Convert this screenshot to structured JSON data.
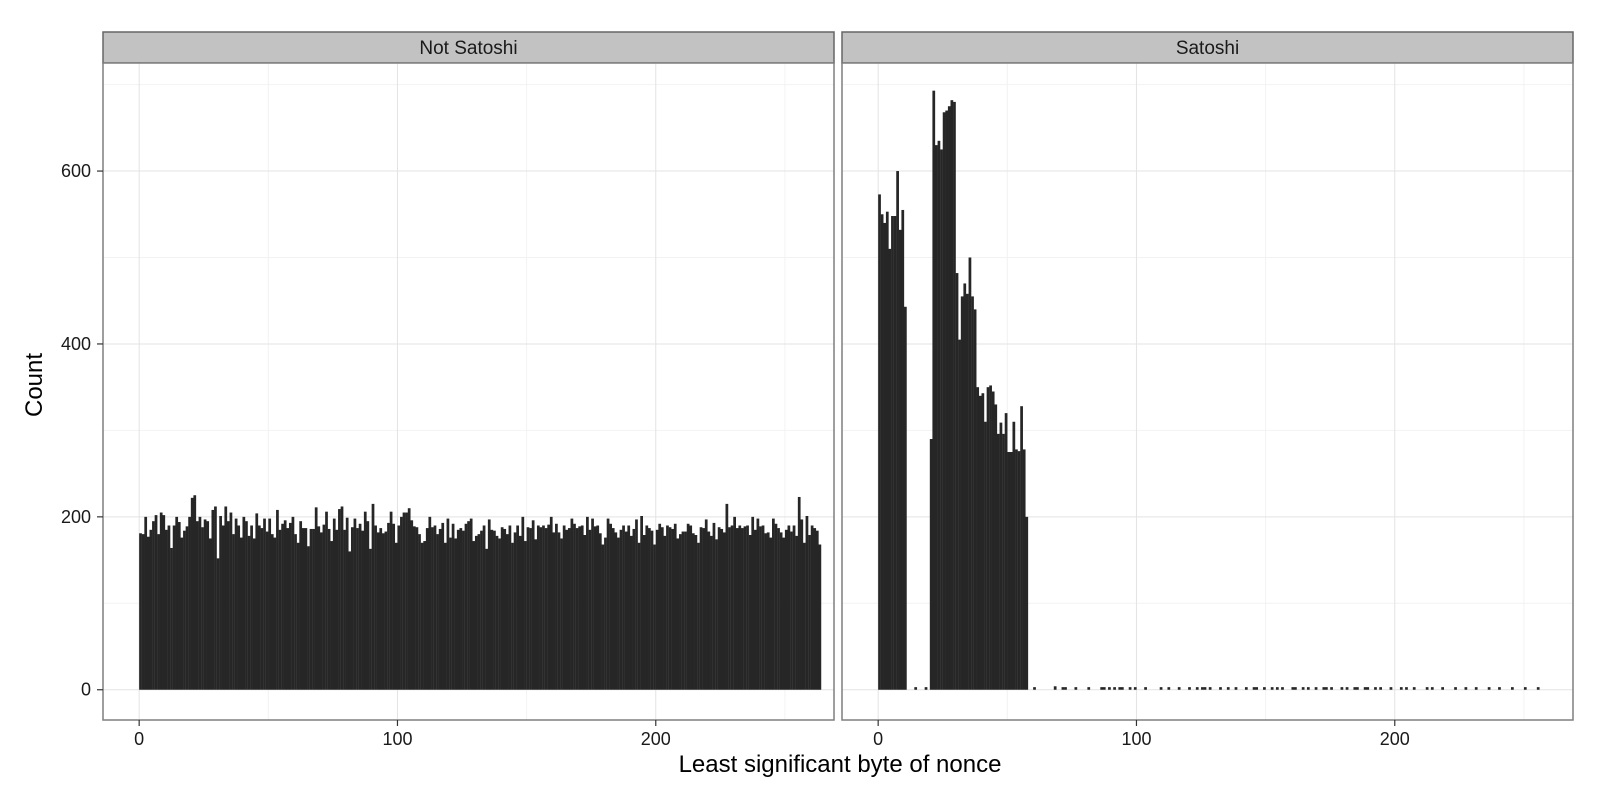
{
  "chart_data": {
    "type": "bar",
    "xlabel": "Least significant byte of nonce",
    "ylabel": "Count",
    "xlim": [
      -14,
      269
    ],
    "ylim": [
      -35,
      725
    ],
    "x_ticks": [
      0,
      100,
      200
    ],
    "y_ticks": [
      0,
      200,
      400,
      600
    ],
    "x_minor_ticks": [
      50,
      150,
      250
    ],
    "y_minor_ticks": [
      100,
      300,
      500,
      700
    ],
    "grid": true,
    "bar_color": "#262626",
    "panels": [
      {
        "label": "Not Satoshi",
        "x_start": 0,
        "bin_width": 1,
        "values": [
          181,
          180,
          200,
          177,
          185,
          195,
          202,
          180,
          205,
          202,
          185,
          190,
          164,
          190,
          200,
          194,
          176,
          184,
          189,
          200,
          222,
          225,
          195,
          200,
          188,
          197,
          195,
          175,
          208,
          212,
          152,
          201,
          190,
          212,
          195,
          205,
          180,
          198,
          190,
          176,
          200,
          195,
          178,
          190,
          175,
          204,
          190,
          187,
          198,
          183,
          198,
          180,
          176,
          208,
          185,
          192,
          196,
          187,
          193,
          200,
          180,
          170,
          195,
          187,
          187,
          166,
          186,
          186,
          211,
          189,
          182,
          191,
          206,
          186,
          172,
          198,
          185,
          209,
          212,
          185,
          199,
          160,
          188,
          198,
          187,
          192,
          184,
          206,
          195,
          163,
          215,
          190,
          182,
          187,
          181,
          183,
          193,
          206,
          192,
          170,
          190,
          200,
          205,
          205,
          210,
          196,
          189,
          188,
          180,
          170,
          172,
          187,
          200,
          188,
          190,
          180,
          186,
          193,
          170,
          198,
          176,
          192,
          175,
          185,
          187,
          184,
          192,
          195,
          198,
          172,
          178,
          180,
          184,
          190,
          163,
          197,
          185,
          184,
          178,
          175,
          188,
          186,
          180,
          190,
          170,
          182,
          190,
          178,
          200,
          172,
          188,
          187,
          196,
          174,
          190,
          188,
          190,
          187,
          191,
          200,
          182,
          192,
          182,
          175,
          190,
          185,
          187,
          198,
          192,
          187,
          189,
          190,
          179,
          200,
          185,
          198,
          189,
          190,
          181,
          168,
          176,
          198,
          192,
          187,
          182,
          176,
          185,
          190,
          183,
          190,
          178,
          186,
          197,
          170,
          201,
          179,
          190,
          187,
          184,
          168,
          185,
          192,
          188,
          178,
          190,
          188,
          186,
          192,
          175,
          180,
          183,
          183,
          192,
          190,
          181,
          179,
          170,
          188,
          187,
          197,
          183,
          178,
          193,
          174,
          188,
          186,
          182,
          215,
          188,
          190,
          200,
          187,
          190,
          187,
          189,
          190,
          179,
          200,
          185,
          198,
          189,
          190,
          181,
          182,
          176,
          198,
          192,
          187,
          182,
          176,
          185,
          190,
          183,
          190,
          178,
          223,
          197,
          170,
          201,
          179,
          190,
          187,
          184,
          168
        ]
      },
      {
        "label": "Satoshi",
        "x_start": 0,
        "bin_width": 1,
        "values": [
          573,
          550,
          540,
          553,
          510,
          548,
          548,
          600,
          532,
          555,
          443,
          0,
          0,
          0,
          3,
          0,
          0,
          0,
          3,
          0,
          290,
          693,
          630,
          635,
          625,
          668,
          670,
          675,
          682,
          680,
          482,
          405,
          455,
          470,
          458,
          500,
          455,
          440,
          350,
          340,
          343,
          310,
          350,
          352,
          345,
          330,
          296,
          309,
          296,
          320,
          275,
          275,
          310,
          278,
          276,
          328,
          278,
          200,
          0,
          0,
          3,
          0,
          0,
          0,
          0,
          0,
          0,
          0,
          4,
          0,
          0,
          3,
          3,
          0,
          0,
          0,
          3,
          0,
          0,
          0,
          0,
          3,
          0,
          0,
          0,
          0,
          3,
          3,
          0,
          3,
          0,
          3,
          0,
          3,
          3,
          0,
          0,
          3,
          0,
          3,
          0,
          0,
          0,
          3,
          0,
          0,
          0,
          0,
          0,
          3,
          0,
          0,
          3,
          0,
          0,
          0,
          3,
          0,
          0,
          0,
          3,
          0,
          0,
          3,
          0,
          3,
          3,
          0,
          3,
          0,
          0,
          0,
          3,
          0,
          0,
          3,
          0,
          0,
          3,
          0,
          0,
          0,
          3,
          0,
          0,
          3,
          3,
          0,
          0,
          3,
          0,
          0,
          3,
          0,
          3,
          0,
          3,
          0,
          0,
          0,
          3,
          3,
          0,
          0,
          3,
          0,
          3,
          0,
          0,
          3,
          0,
          0,
          3,
          3,
          0,
          3,
          0,
          0,
          0,
          3,
          0,
          3,
          0,
          0,
          3,
          3,
          0,
          0,
          3,
          3,
          0,
          0,
          3,
          0,
          3,
          0,
          0,
          0,
          3,
          0,
          0,
          0,
          3,
          0,
          3,
          0,
          0,
          3,
          0,
          0,
          0,
          0,
          3,
          0,
          3,
          0,
          0,
          0,
          3,
          0,
          0,
          0,
          0,
          3,
          0,
          0,
          0,
          3,
          0,
          0,
          0,
          3,
          0,
          0,
          0,
          0,
          3,
          0,
          0,
          0,
          3,
          0,
          0,
          0,
          0,
          3,
          0,
          0,
          0,
          0,
          3,
          0,
          0,
          0,
          0,
          3,
          0,
          0,
          0,
          0,
          0,
          0,
          0,
          0,
          0,
          0,
          0
        ]
      }
    ]
  }
}
